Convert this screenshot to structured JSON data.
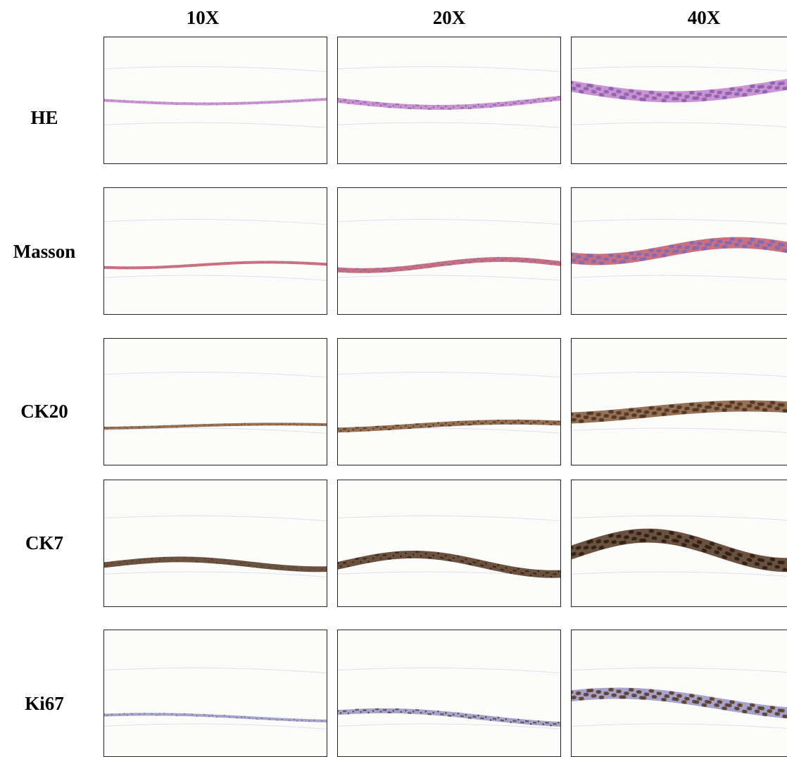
{
  "columns": [
    "10X",
    "20X",
    "40X"
  ],
  "rows": [
    "HE",
    "Masson",
    "CK20",
    "CK7",
    "Ki67"
  ]
}
